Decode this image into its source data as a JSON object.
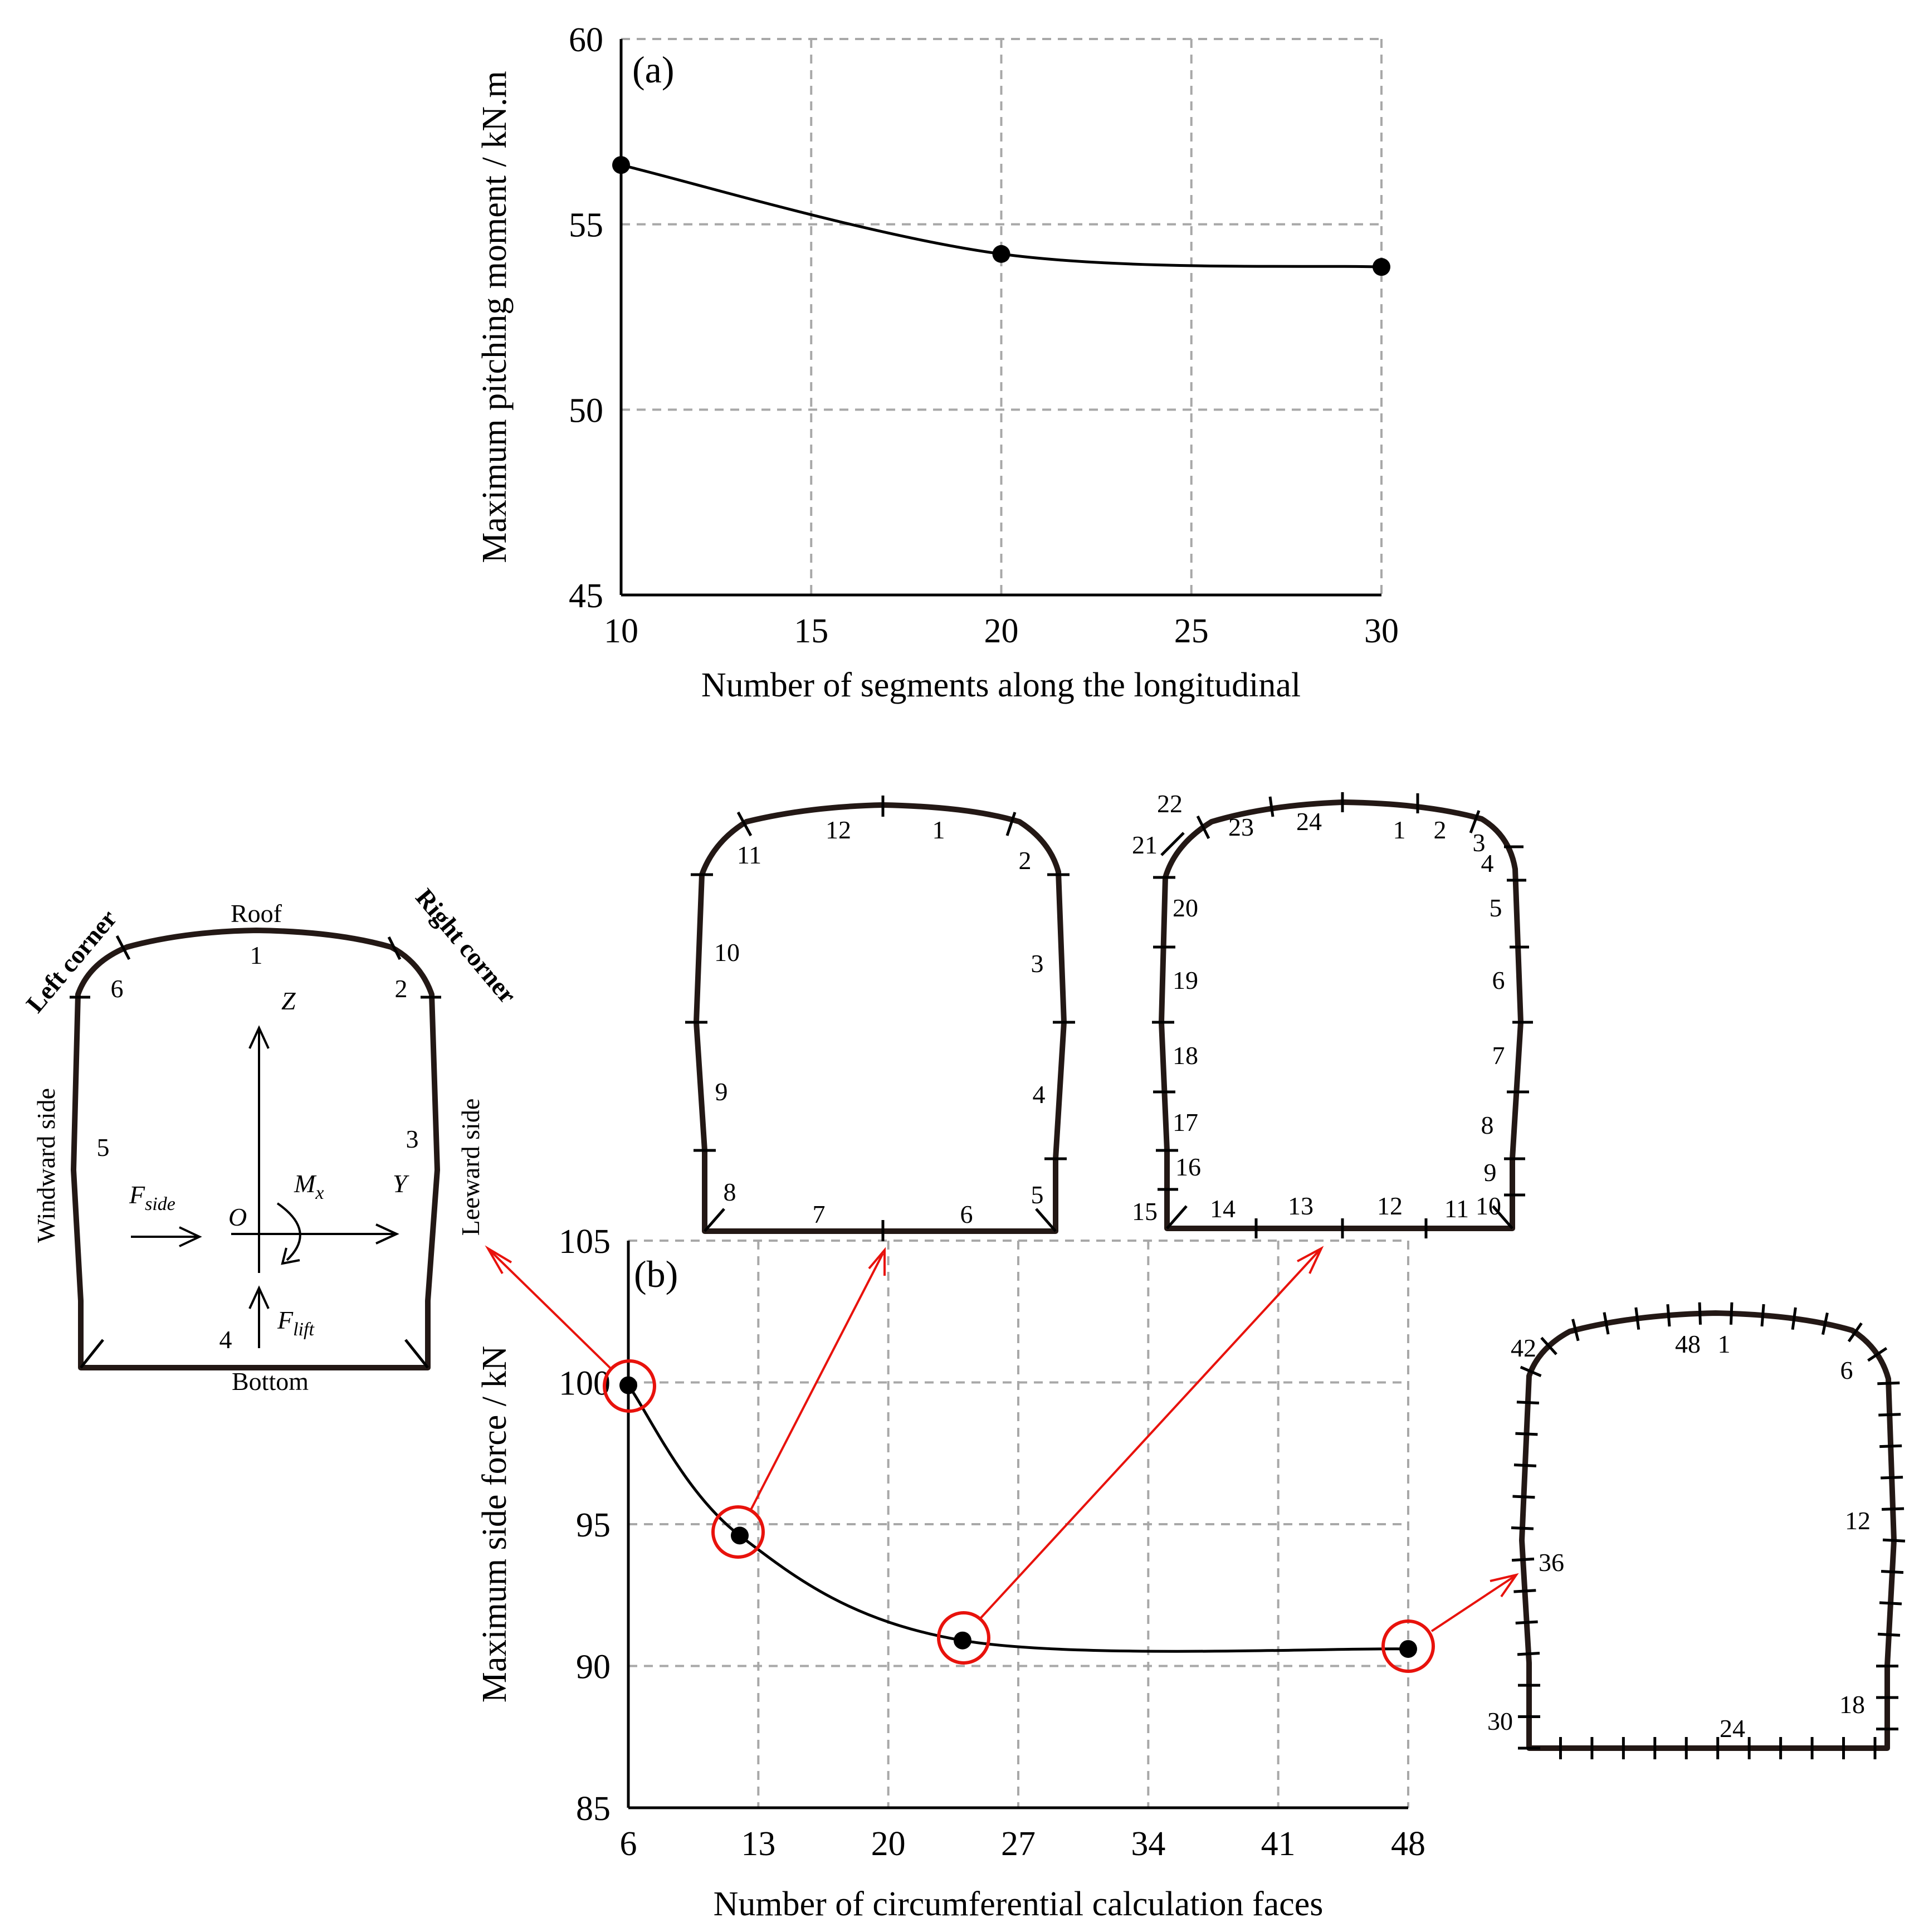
{
  "chart_data": [
    {
      "type": "line",
      "panel_label": "(a)",
      "xlabel": "Number of segments along the longitudinal",
      "ylabel": "Maximum pitching moment / kN.m",
      "xlim": [
        10,
        30
      ],
      "ylim": [
        45,
        60
      ],
      "xticks": [
        10,
        15,
        20,
        25,
        30
      ],
      "yticks": [
        45,
        50,
        55,
        60
      ],
      "grid": true,
      "x": [
        10,
        20,
        30
      ],
      "y": [
        56.6,
        54.2,
        53.85
      ]
    },
    {
      "type": "line",
      "panel_label": "(b)",
      "xlabel": "Number of  circumferential calculation  faces",
      "ylabel": "Maximum side force / kN",
      "xlim": [
        6,
        48
      ],
      "ylim": [
        85,
        105
      ],
      "xticks": [
        6,
        13,
        20,
        27,
        34,
        41,
        48
      ],
      "yticks": [
        85,
        90,
        95,
        100,
        105
      ],
      "grid": true,
      "x": [
        6,
        12,
        24,
        48
      ],
      "y": [
        99.9,
        94.6,
        90.9,
        90.6
      ]
    }
  ],
  "diagram": {
    "labels": {
      "roof": "Roof",
      "bottom": "Bottom",
      "left_corner": "Left corner",
      "right_corner": "Right corner",
      "windward_side": "Windward side",
      "leeward_side": "Leeward side",
      "z_axis": "Z",
      "y_axis": "Y",
      "origin": "O",
      "f_side": "F",
      "f_side_sub": "side",
      "m_x": "M",
      "m_x_sub": "x",
      "f_lift": "F",
      "f_lift_sub": "lift"
    },
    "faces_6": [
      "1",
      "2",
      "3",
      "4",
      "5",
      "6"
    ],
    "faces_12": [
      "1",
      "2",
      "3",
      "4",
      "5",
      "6",
      "7",
      "8",
      "9",
      "10",
      "11",
      "12"
    ],
    "faces_24": [
      "1",
      "2",
      "3",
      "4",
      "5",
      "6",
      "7",
      "8",
      "9",
      "10",
      "11",
      "12",
      "13",
      "14",
      "15",
      "16",
      "17",
      "18",
      "19",
      "20",
      "21",
      "22",
      "23",
      "24"
    ],
    "faces_48_shown": [
      "1",
      "48",
      "6",
      "12",
      "18",
      "24",
      "30",
      "36",
      "42"
    ]
  }
}
